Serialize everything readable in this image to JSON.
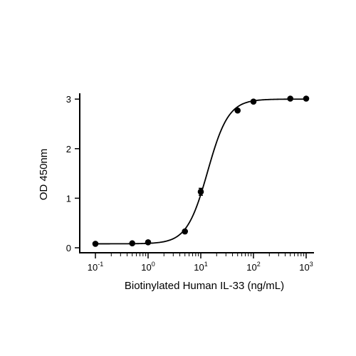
{
  "chart_data": {
    "type": "scatter",
    "title": "",
    "xlabel": "Biotinylated Human IL-33 (ng/mL)",
    "ylabel": "OD 450nm",
    "x_scale": "log10",
    "xlim": [
      0.07,
      1300
    ],
    "ylim": [
      0,
      3.1
    ],
    "grid": false,
    "legend": "none",
    "x_ticks": [
      {
        "value": 0.1,
        "base": "10",
        "exp": "-1"
      },
      {
        "value": 1,
        "base": "10",
        "exp": "0"
      },
      {
        "value": 10,
        "base": "10",
        "exp": "1"
      },
      {
        "value": 100,
        "base": "10",
        "exp": "2"
      },
      {
        "value": 1000,
        "base": "10",
        "exp": "3"
      }
    ],
    "y_ticks": [
      {
        "value": 0,
        "label": "0"
      },
      {
        "value": 1,
        "label": "1"
      },
      {
        "value": 2,
        "label": "2"
      },
      {
        "value": 3,
        "label": "3"
      }
    ],
    "points": [
      {
        "x": 0.1,
        "y": 0.08
      },
      {
        "x": 0.5,
        "y": 0.09
      },
      {
        "x": 1,
        "y": 0.11
      },
      {
        "x": 5,
        "y": 0.33
      },
      {
        "x": 10,
        "y": 1.13,
        "err": 0.07
      },
      {
        "x": 50,
        "y": 2.77
      },
      {
        "x": 100,
        "y": 2.95
      },
      {
        "x": 500,
        "y": 3.01
      },
      {
        "x": 1000,
        "y": 3.01
      }
    ],
    "fit": {
      "model": "4PL",
      "bottom": 0.08,
      "top": 3.0,
      "ec50": 13.5,
      "hill": 2.2
    },
    "colors": {
      "marker": "#000000",
      "line": "#000000",
      "axis": "#000000"
    }
  }
}
